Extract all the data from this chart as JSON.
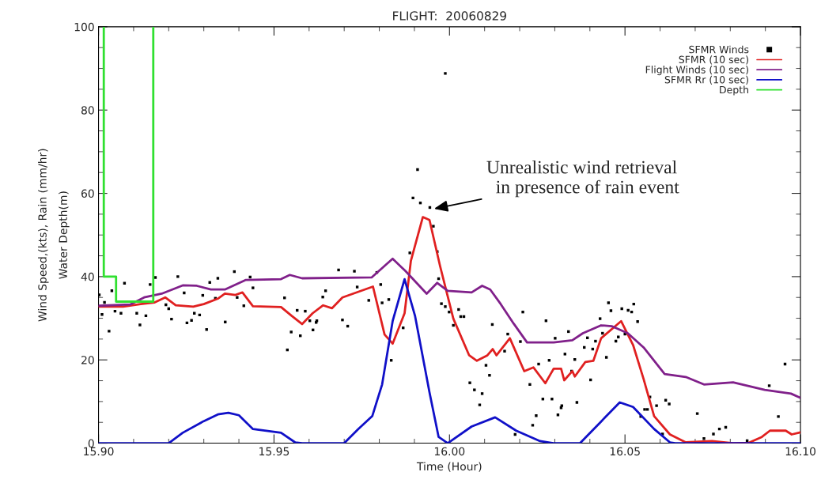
{
  "chart_data": {
    "type": "line",
    "title": "FLIGHT:  20060829",
    "xlabel": "Time (Hour)",
    "ylabel": "Wind Speed,(kts), Rain (mm/hr)\nWater Depth(m)",
    "xlim": [
      15.9,
      16.1
    ],
    "ylim": [
      0,
      100
    ],
    "xticks": [
      {
        "value": 15.9,
        "label": "15.90"
      },
      {
        "value": 15.95,
        "label": "15.95"
      },
      {
        "value": 16.0,
        "label": "16.00"
      },
      {
        "value": 16.05,
        "label": "16.05"
      },
      {
        "value": 16.1,
        "label": "16.10"
      }
    ],
    "yticks": [
      0,
      20,
      40,
      60,
      80,
      100
    ],
    "grid": false,
    "legend": "top right",
    "annotations": [
      {
        "text": "Unrealistic wind retrieval\n  in presence of rain event",
        "x": 15.995,
        "y": 56.2
      }
    ],
    "series": [
      {
        "name": "SFMR Winds",
        "type": "scatter",
        "marker": "square",
        "color": "#000000",
        "x": [
          15.9002,
          15.901,
          15.9017,
          15.903,
          15.9038,
          15.9047,
          15.9064,
          15.9074,
          15.9109,
          15.9118,
          15.9135,
          15.9147,
          15.9162,
          15.9192,
          15.92,
          15.9208,
          15.9226,
          15.9244,
          15.9252,
          15.9265,
          15.9273,
          15.9288,
          15.9297,
          15.9308,
          15.9317,
          15.9333,
          15.934,
          15.9361,
          15.9387,
          15.9395,
          15.9414,
          15.9432,
          15.944,
          15.953,
          15.9538,
          15.9549,
          15.9566,
          15.9575,
          15.9589,
          15.9602,
          15.9611,
          15.9622,
          15.9639,
          15.962,
          15.9647,
          15.9684,
          15.9695,
          15.971,
          15.9729,
          15.9737,
          15.977,
          15.9793,
          15.9804,
          15.9808,
          15.9827,
          15.9834,
          15.9868,
          15.9887,
          15.9896,
          15.9909,
          15.9917,
          15.9944,
          15.9954,
          15.9965,
          15.9969,
          15.9977,
          15.9988,
          15.9988,
          15.9999,
          16.0011,
          16.0026,
          16.0032,
          16.0041,
          16.0058,
          16.0071,
          16.0086,
          16.0093,
          16.0104,
          16.0114,
          16.0122,
          16.0157,
          16.0166,
          16.0187,
          16.0202,
          16.0209,
          16.0229,
          16.0237,
          16.0247,
          16.0254,
          16.0266,
          16.0275,
          16.0284,
          16.0292,
          16.0301,
          16.0309,
          16.0318,
          16.032,
          16.0329,
          16.0339,
          16.0348,
          16.0357,
          16.0363,
          16.0384,
          16.0393,
          16.0402,
          16.0408,
          16.0416,
          16.0429,
          16.0436,
          16.0447,
          16.0453,
          16.046,
          16.0474,
          16.0481,
          16.0491,
          16.05,
          16.0509,
          16.0519,
          16.0525,
          16.0536,
          16.0545,
          16.0556,
          16.0564,
          16.0571,
          16.059,
          16.0607,
          16.0616,
          16.0626,
          16.0706,
          16.0725,
          16.0752,
          16.0769,
          16.0787,
          16.0848,
          16.0911,
          16.0937,
          16.0956
        ],
        "values": [
          35.6,
          30.9,
          33.8,
          26.9,
          36.6,
          31.7,
          31.2,
          38.4,
          31.2,
          28.4,
          30.6,
          38.1,
          39.8,
          33.25,
          32.3,
          29.8,
          40,
          36.1,
          28.9,
          29.5,
          31.2,
          30.8,
          35.5,
          27.3,
          38.6,
          34.8,
          39.6,
          29.1,
          41.2,
          35,
          33,
          39.9,
          37.3,
          34.9,
          22.4,
          26.7,
          31.9,
          25.8,
          31.7,
          29.4,
          27.2,
          29.4,
          35.1,
          29,
          36.6,
          41.6,
          29.6,
          28.1,
          41.3,
          37.5,
          34.3,
          41,
          38.1,
          33.7,
          34.5,
          19.9,
          27.7,
          45.7,
          58.9,
          65.7,
          57.7,
          56.6,
          52.1,
          46,
          39.5,
          33.5,
          32.8,
          88.8,
          31.5,
          28.3,
          32.1,
          30.4,
          30.4,
          14.5,
          12.8,
          9.2,
          11.9,
          18.7,
          16.3,
          28.5,
          22.1,
          26.2,
          2.1,
          24.4,
          31.5,
          14.1,
          4.3,
          6.6,
          19,
          10.6,
          29.4,
          19.9,
          10.6,
          25.2,
          6.8,
          8.5,
          9,
          21.4,
          26.8,
          17.3,
          20.1,
          9.8,
          23,
          25.3,
          15.2,
          22.6,
          24.5,
          29.9,
          26.4,
          20.6,
          33.7,
          31.8,
          24.5,
          25.5,
          32.3,
          26.2,
          31.9,
          31.5,
          33.4,
          29.2,
          6.4,
          8.1,
          8.1,
          11.1,
          9,
          2.2,
          10.3,
          9.4,
          7.1,
          1.1,
          2.2,
          3.4,
          3.8,
          0.6,
          13.8,
          6.4,
          19
        ]
      },
      {
        "name": "SFMR (10 sec)",
        "color": "#e02020",
        "x": [
          15.9,
          15.907,
          15.912,
          15.916,
          15.919,
          15.922,
          15.927,
          15.93,
          15.934,
          15.936,
          15.939,
          15.941,
          15.944,
          15.952,
          15.955,
          15.958,
          15.961,
          15.964,
          15.9665,
          15.9695,
          15.9782,
          15.9815,
          15.9838,
          15.9872,
          15.989,
          15.9924,
          15.9943,
          15.9973,
          16.0011,
          16.0056,
          16.0078,
          16.0108,
          16.0123,
          16.0134,
          16.0172,
          16.0213,
          16.0239,
          16.0273,
          16.0288,
          16.0297,
          16.0318,
          16.0327,
          16.035,
          16.0357,
          16.0387,
          16.041,
          16.0432,
          16.0489,
          16.0523,
          16.0553,
          16.0583,
          16.0628,
          16.0673,
          16.0748,
          16.0808,
          16.0853,
          16.089,
          16.0913,
          16.0958,
          16.0975,
          16.1
        ],
        "values": [
          32.8,
          32.8,
          33.4,
          33.8,
          35,
          33.1,
          32.8,
          33.4,
          34.7,
          35.9,
          35.6,
          36.2,
          32.9,
          32.7,
          30.6,
          28.6,
          31.2,
          33.1,
          32.4,
          35,
          37.6,
          26.1,
          23.9,
          31.2,
          43.8,
          54.3,
          53.6,
          42.6,
          29.9,
          21.1,
          19.8,
          21.1,
          22.6,
          21.1,
          25.2,
          17.3,
          18.2,
          14.4,
          16.6,
          17.9,
          17.9,
          15.1,
          17.3,
          16,
          19.5,
          19.8,
          25.2,
          29.3,
          23.6,
          15.4,
          6.5,
          2.1,
          0.2,
          0.5,
          0,
          0.1,
          1.5,
          3,
          3,
          2.1,
          2.6
        ]
      },
      {
        "name": "Flight Winds (10 sec)",
        "color": "#80208a",
        "x": [
          15.9,
          15.909,
          15.913,
          15.918,
          15.924,
          15.928,
          15.932,
          15.936,
          15.942,
          15.952,
          15.9545,
          15.958,
          15.9778,
          15.9838,
          15.9875,
          15.9935,
          15.9965,
          15.9995,
          16.0063,
          16.0093,
          16.0116,
          16.0146,
          16.0183,
          16.0221,
          16.0297,
          16.035,
          16.038,
          16.0432,
          16.0462,
          16.0508,
          16.0553,
          16.0613,
          16.0673,
          16.0725,
          16.0808,
          16.0898,
          16.0973,
          16.1
        ],
        "values": [
          33,
          33.3,
          35,
          35.9,
          37.9,
          37.8,
          36.9,
          36.9,
          39.2,
          39.4,
          40.4,
          39.6,
          39.8,
          44.3,
          41.3,
          35.9,
          38.5,
          36.6,
          36.2,
          37.8,
          36.9,
          33.4,
          28.7,
          24.2,
          24.2,
          24.7,
          26.4,
          28.3,
          28.1,
          26.4,
          23,
          16.6,
          15.9,
          14.1,
          14.6,
          12.8,
          11.9,
          10.9
        ]
      },
      {
        "name": "SFMR Rr (10 sec)",
        "color": "#1010c8",
        "x": [
          15.9,
          15.92,
          15.924,
          15.93,
          15.934,
          15.937,
          15.94,
          15.944,
          15.952,
          15.956,
          15.958,
          15.97,
          15.974,
          15.978,
          15.9808,
          15.9838,
          15.9872,
          15.9902,
          15.9943,
          15.9969,
          15.9995,
          16.0063,
          16.013,
          16.019,
          16.0258,
          16.0296,
          16.0372,
          16.0432,
          16.0485,
          16.0523,
          16.0583,
          16.0628,
          16.0643,
          16.1
        ],
        "values": [
          0,
          0,
          2.5,
          5.3,
          6.9,
          7.3,
          6.7,
          3.4,
          2.5,
          0.2,
          0,
          0,
          3.4,
          6.5,
          14.1,
          29.3,
          39.4,
          30.5,
          12.2,
          1.5,
          0,
          4,
          6.2,
          3,
          0.5,
          0,
          0,
          5.2,
          9.8,
          8.7,
          3.4,
          0.2,
          0,
          0
        ]
      },
      {
        "name": "Depth",
        "type": "step",
        "color": "#30e030",
        "x": [
          15.9015,
          15.9015,
          15.9038,
          15.905,
          15.9156,
          15.9156
        ],
        "values": [
          100,
          40,
          40,
          34,
          34,
          100
        ]
      }
    ]
  }
}
